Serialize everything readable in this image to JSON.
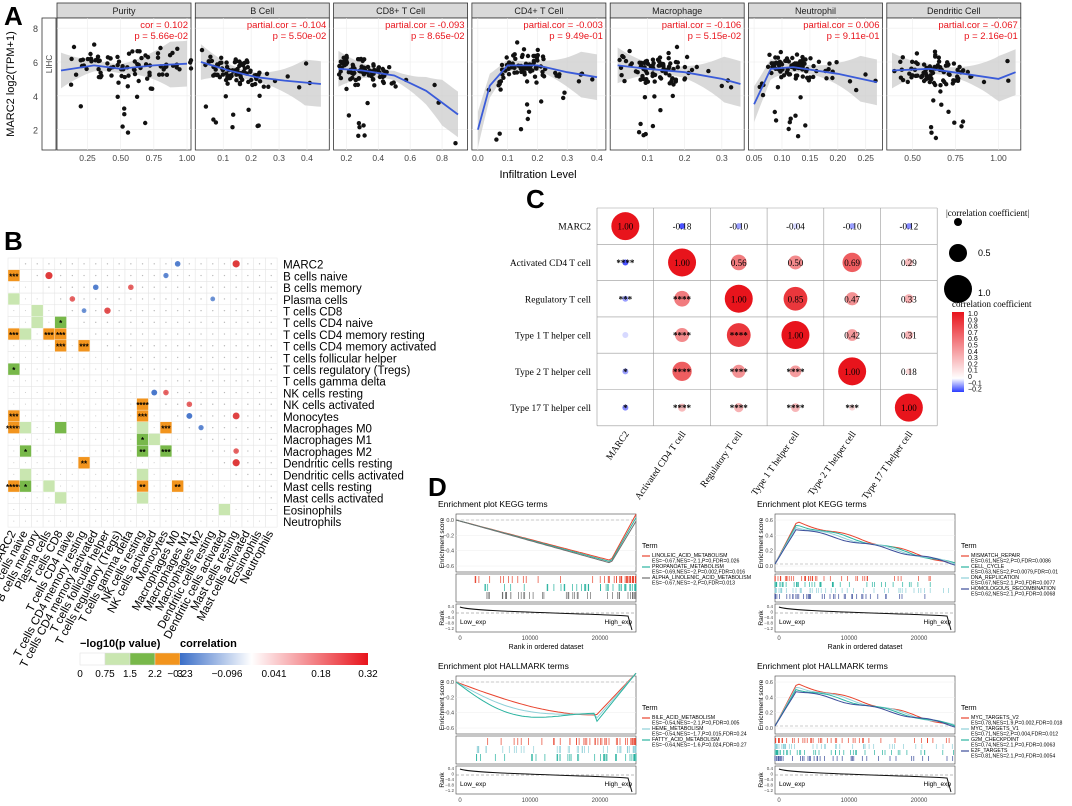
{
  "panel_labels": {
    "a": "A",
    "b": "B",
    "c": "C",
    "d": "D"
  },
  "colors": {
    "blue_line": "#3a5bd9",
    "band": "#cfcfcf",
    "red_text": "#e8141c",
    "facet_bg": "#d9d9d9"
  },
  "chart_data": [
    {
      "type": "scatter",
      "panel": "A",
      "ylabel": "MARC2 log2(TPM+1)",
      "xlabel": "Infiltration Level",
      "row_label": "LIHC",
      "yticks": [
        2,
        4,
        6,
        8
      ],
      "ylim": [
        0.8,
        8.6
      ],
      "facets": [
        {
          "title": "Purity",
          "stat1": "cor = 0.102",
          "stat2": "p = 5.66e-02",
          "xlim": [
            0.02,
            1.03
          ],
          "xticks": [
            0.25,
            0.5,
            0.75,
            1.0
          ],
          "xtick_labels": [
            "0.25",
            "0.50",
            "0.75",
            "1.00"
          ],
          "fit": [
            [
              0.05,
              5.5
            ],
            [
              0.3,
              5.8
            ],
            [
              0.5,
              5.6
            ],
            [
              0.75,
              5.8
            ],
            [
              1.0,
              5.9
            ]
          ],
          "spread": [
            0.12,
            0.98
          ]
        },
        {
          "title": "B Cell",
          "stat1": "partial.cor = -0.104",
          "stat2": "p = 5.50e-02",
          "xlim": [
            0.0,
            0.48
          ],
          "xticks": [
            0.1,
            0.2,
            0.3,
            0.4
          ],
          "xtick_labels": [
            "0.1",
            "0.2",
            "0.3",
            "0.4"
          ],
          "fit": [
            [
              0.02,
              6.0
            ],
            [
              0.12,
              5.5
            ],
            [
              0.22,
              5.1
            ],
            [
              0.32,
              4.9
            ],
            [
              0.45,
              4.7
            ]
          ],
          "spread": [
            0.02,
            0.25
          ]
        },
        {
          "title": "CD8+ T Cell",
          "stat1": "partial.cor = -0.093",
          "stat2": "p = 8.65e-02",
          "xlim": [
            0.12,
            0.96
          ],
          "xticks": [
            0.2,
            0.4,
            0.6,
            0.8
          ],
          "xtick_labels": [
            "0.2",
            "0.4",
            "0.6",
            "0.8"
          ],
          "fit": [
            [
              0.15,
              5.6
            ],
            [
              0.3,
              5.5
            ],
            [
              0.5,
              5.2
            ],
            [
              0.7,
              4.3
            ],
            [
              0.9,
              2.9
            ]
          ],
          "spread": [
            0.15,
            0.45
          ]
        },
        {
          "title": "CD4+ T Cell",
          "stat1": "partial.cor = -0.003",
          "stat2": "p = 9.49e-01",
          "xlim": [
            -0.02,
            0.43
          ],
          "xticks": [
            0.0,
            0.1,
            0.2,
            0.3,
            0.4
          ],
          "xtick_labels": [
            "0.0",
            "0.1",
            "0.2",
            "0.3",
            "0.4"
          ],
          "fit": [
            [
              0.0,
              2.0
            ],
            [
              0.04,
              4.6
            ],
            [
              0.1,
              5.8
            ],
            [
              0.2,
              5.8
            ],
            [
              0.3,
              5.4
            ],
            [
              0.4,
              5.1
            ]
          ],
          "spread": [
            0.06,
            0.25
          ]
        },
        {
          "title": "Macrophage",
          "stat1": "partial.cor = -0.106",
          "stat2": "p = 5.15e-02",
          "xlim": [
            0.0,
            0.36
          ],
          "xticks": [
            0.1,
            0.2,
            0.3
          ],
          "xtick_labels": [
            "0.1",
            "0.2",
            "0.3"
          ],
          "fit": [
            [
              0.02,
              5.8
            ],
            [
              0.1,
              5.6
            ],
            [
              0.2,
              5.4
            ],
            [
              0.3,
              5.0
            ],
            [
              0.35,
              4.7
            ]
          ],
          "spread": [
            0.03,
            0.22
          ]
        },
        {
          "title": "Neutrophil",
          "stat1": "partial.cor = 0.006",
          "stat2": "p = 9.11e-01",
          "xlim": [
            0.04,
            0.28
          ],
          "xticks": [
            0.05,
            0.1,
            0.15,
            0.2,
            0.25
          ],
          "xtick_labels": [
            "0.05",
            "0.10",
            "0.15",
            "0.20",
            "0.25"
          ],
          "fit": [
            [
              0.05,
              3.5
            ],
            [
              0.08,
              5.6
            ],
            [
              0.12,
              5.7
            ],
            [
              0.2,
              5.3
            ],
            [
              0.27,
              4.8
            ]
          ],
          "spread": [
            0.06,
            0.18
          ]
        },
        {
          "title": "Dendritic Cell",
          "stat1": "partial.cor = -0.067",
          "stat2": "p = 2.16e-01",
          "xlim": [
            0.35,
            1.13
          ],
          "xticks": [
            0.5,
            0.75,
            1.0
          ],
          "xtick_labels": [
            "0.50",
            "0.75",
            "1.00"
          ],
          "fit": [
            [
              0.38,
              5.5
            ],
            [
              0.6,
              5.6
            ],
            [
              0.8,
              5.3
            ],
            [
              1.0,
              5.0
            ],
            [
              1.1,
              5.4
            ]
          ],
          "spread": [
            0.4,
            0.85
          ]
        }
      ]
    },
    {
      "type": "heatmap",
      "panel": "B",
      "cells": [
        "MARC2",
        "B cells naive",
        "B cells memory",
        "Plasma cells",
        "T cells CD8",
        "T cells CD4 naive",
        "T cells CD4 memory resting",
        "T cells CD4 memory activated",
        "T cells follicular helper",
        "T cells regulatory (Tregs)",
        "T cells gamma delta",
        "NK cells resting",
        "NK cells activated",
        "Monocytes",
        "Macrophages M0",
        "Macrophages M1",
        "Macrophages M2",
        "Dendritic cells resting",
        "Dendritic cells activated",
        "Mast cells resting",
        "Mast cells activated",
        "Eosinophils",
        "Neutrophils"
      ],
      "lower_cells": [
        {
          "r": 1,
          "c": 0,
          "lv": 3,
          "s": "***"
        },
        {
          "r": 3,
          "c": 0,
          "lv": 1,
          "s": ""
        },
        {
          "r": 4,
          "c": 2,
          "lv": 1,
          "s": ""
        },
        {
          "r": 5,
          "c": 2,
          "lv": 1,
          "s": ""
        },
        {
          "r": 5,
          "c": 4,
          "lv": 2,
          "s": "*"
        },
        {
          "r": 6,
          "c": 0,
          "lv": 3,
          "s": "***"
        },
        {
          "r": 6,
          "c": 1,
          "lv": 1,
          "s": ""
        },
        {
          "r": 6,
          "c": 3,
          "lv": 3,
          "s": "***"
        },
        {
          "r": 6,
          "c": 4,
          "lv": 3,
          "s": "***"
        },
        {
          "r": 7,
          "c": 4,
          "lv": 3,
          "s": "***"
        },
        {
          "r": 7,
          "c": 6,
          "lv": 3,
          "s": "***"
        },
        {
          "r": 9,
          "c": 0,
          "lv": 2,
          "s": "*"
        },
        {
          "r": 12,
          "c": 11,
          "lv": 3,
          "s": "****"
        },
        {
          "r": 13,
          "c": 0,
          "lv": 3,
          "s": "***"
        },
        {
          "r": 13,
          "c": 11,
          "lv": 3,
          "s": "***"
        },
        {
          "r": 14,
          "c": 0,
          "lv": 3,
          "s": "*****"
        },
        {
          "r": 14,
          "c": 1,
          "lv": 1,
          "s": ""
        },
        {
          "r": 14,
          "c": 4,
          "lv": 2,
          "s": ""
        },
        {
          "r": 14,
          "c": 11,
          "lv": 1,
          "s": ""
        },
        {
          "r": 14,
          "c": 13,
          "lv": 3,
          "s": "***"
        },
        {
          "r": 15,
          "c": 11,
          "lv": 2,
          "s": "*"
        },
        {
          "r": 15,
          "c": 12,
          "lv": 1,
          "s": ""
        },
        {
          "r": 16,
          "c": 1,
          "lv": 2,
          "s": "*"
        },
        {
          "r": 16,
          "c": 11,
          "lv": 2,
          "s": "**"
        },
        {
          "r": 16,
          "c": 13,
          "lv": 2,
          "s": "***"
        },
        {
          "r": 17,
          "c": 6,
          "lv": 3,
          "s": "**"
        },
        {
          "r": 18,
          "c": 1,
          "lv": 1,
          "s": ""
        },
        {
          "r": 18,
          "c": 11,
          "lv": 1,
          "s": ""
        },
        {
          "r": 19,
          "c": 0,
          "lv": 3,
          "s": "*****"
        },
        {
          "r": 19,
          "c": 1,
          "lv": 2,
          "s": "*"
        },
        {
          "r": 19,
          "c": 3,
          "lv": 1,
          "s": ""
        },
        {
          "r": 19,
          "c": 11,
          "lv": 3,
          "s": "**"
        },
        {
          "r": 19,
          "c": 14,
          "lv": 3,
          "s": "**"
        },
        {
          "r": 20,
          "c": 4,
          "lv": 1,
          "s": ""
        },
        {
          "r": 20,
          "c": 11,
          "lv": 1,
          "s": ""
        },
        {
          "r": 21,
          "c": 18,
          "lv": 1,
          "s": ""
        }
      ],
      "upper_dots": [
        {
          "r": 1,
          "c": 3,
          "v": 0.3
        },
        {
          "r": 2,
          "c": 7,
          "v": -0.2
        },
        {
          "r": 3,
          "c": 5,
          "v": 0.2
        },
        {
          "r": 0,
          "c": 14,
          "v": -0.2
        },
        {
          "r": 0,
          "c": 19,
          "v": 0.3
        },
        {
          "r": 2,
          "c": 10,
          "v": 0.2
        },
        {
          "r": 1,
          "c": 13,
          "v": -0.18
        },
        {
          "r": 3,
          "c": 17,
          "v": -0.15
        },
        {
          "r": 4,
          "c": 6,
          "v": -0.15
        },
        {
          "r": 4,
          "c": 8,
          "v": 0.25
        },
        {
          "r": 11,
          "c": 12,
          "v": -0.22
        },
        {
          "r": 11,
          "c": 13,
          "v": 0.2
        },
        {
          "r": 12,
          "c": 15,
          "v": 0.2
        },
        {
          "r": 13,
          "c": 15,
          "v": -0.22
        },
        {
          "r": 13,
          "c": 19,
          "v": 0.28
        },
        {
          "r": 14,
          "c": 16,
          "v": -0.18
        },
        {
          "r": 16,
          "c": 19,
          "v": 0.2
        },
        {
          "r": 17,
          "c": 19,
          "v": 0.3
        }
      ],
      "legend_p": {
        "title": "−log10(p value)",
        "ticks": [
          "0",
          "0.75",
          "1.5",
          "2.2",
          "3"
        ]
      },
      "legend_cor": {
        "title": "correlation",
        "ticks": [
          "−0.23",
          "−0.096",
          "0.041",
          "0.18",
          "0.32"
        ]
      }
    },
    {
      "type": "correlation-matrix",
      "panel": "C",
      "rows": [
        "MARC2",
        "Activated CD4 T cell",
        "Regulatory T cell",
        "Type 1 T helper cell",
        "Type 2 T helper cell",
        "Type 17 T helper cell"
      ],
      "upper": [
        {
          "r": 0,
          "c": 1,
          "v": -0.18,
          "t": "-0.18"
        },
        {
          "r": 0,
          "c": 2,
          "v": -0.1,
          "t": "-0.10"
        },
        {
          "r": 0,
          "c": 3,
          "v": -0.04,
          "t": "-0.04"
        },
        {
          "r": 0,
          "c": 4,
          "v": -0.1,
          "t": "-0.10"
        },
        {
          "r": 0,
          "c": 5,
          "v": -0.12,
          "t": "-0.12"
        },
        {
          "r": 1,
          "c": 2,
          "v": 0.56,
          "t": "0.56"
        },
        {
          "r": 1,
          "c": 3,
          "v": 0.5,
          "t": "0.50"
        },
        {
          "r": 1,
          "c": 4,
          "v": 0.69,
          "t": "0.69"
        },
        {
          "r": 1,
          "c": 5,
          "v": 0.29,
          "t": "0.29"
        },
        {
          "r": 2,
          "c": 3,
          "v": 0.85,
          "t": "0.85"
        },
        {
          "r": 2,
          "c": 4,
          "v": 0.47,
          "t": "0.47"
        },
        {
          "r": 2,
          "c": 5,
          "v": 0.33,
          "t": "0.33"
        },
        {
          "r": 3,
          "c": 4,
          "v": 0.42,
          "t": "0.42"
        },
        {
          "r": 3,
          "c": 5,
          "v": 0.31,
          "t": "0.31"
        },
        {
          "r": 4,
          "c": 5,
          "v": 0.18,
          "t": "0.18"
        }
      ],
      "diag_label": "1.00",
      "lower": [
        {
          "r": 1,
          "c": 0,
          "v": -0.18,
          "s": "****"
        },
        {
          "r": 2,
          "c": 0,
          "v": -0.1,
          "s": "***"
        },
        {
          "r": 2,
          "c": 1,
          "v": 0.56,
          "s": "****"
        },
        {
          "r": 3,
          "c": 0,
          "v": -0.04,
          "s": ""
        },
        {
          "r": 3,
          "c": 1,
          "v": 0.5,
          "s": "****"
        },
        {
          "r": 3,
          "c": 2,
          "v": 0.85,
          "s": "****"
        },
        {
          "r": 4,
          "c": 0,
          "v": -0.1,
          "s": "*"
        },
        {
          "r": 4,
          "c": 1,
          "v": 0.69,
          "s": "****"
        },
        {
          "r": 4,
          "c": 2,
          "v": 0.47,
          "s": "****"
        },
        {
          "r": 4,
          "c": 3,
          "v": 0.42,
          "s": "****"
        },
        {
          "r": 5,
          "c": 0,
          "v": -0.12,
          "s": "*"
        },
        {
          "r": 5,
          "c": 1,
          "v": 0.29,
          "s": "****"
        },
        {
          "r": 5,
          "c": 2,
          "v": 0.33,
          "s": "****"
        },
        {
          "r": 5,
          "c": 3,
          "v": 0.31,
          "s": "****"
        },
        {
          "r": 5,
          "c": 4,
          "v": 0.18,
          "s": "***"
        }
      ],
      "size_legend": {
        "title": "|correlation coefficient|",
        "ticks": [
          "0.5",
          "1.0"
        ]
      },
      "color_legend": {
        "title": "correlation coefficient",
        "ticks": [
          "1.0",
          "0.9",
          "0.8",
          "0.7",
          "0.6",
          "0.5",
          "0.4",
          "0.3",
          "0.2",
          "0.1",
          "0",
          "−0.1",
          "−0.2"
        ]
      }
    },
    {
      "type": "line",
      "panel": "D",
      "plots": [
        {
          "title": "Enrichment plot KEGG terms",
          "mode": "down",
          "legend": [
            {
              "name": "LINOLEIC_ACID_METABOLISM",
              "stat": "ES=−0.67,NES=−2.1,P=0,FDR=0.026",
              "color": "#e8442e"
            },
            {
              "name": "PROPANOATE_METABOLISM",
              "stat": "ES=−0.69,NES=−2,P=0.002,FDR=0.016",
              "color": "#2ab3a0"
            },
            {
              "name": "ALPHA_LINOLENIC_ACID_METABOLISM",
              "stat": "ES=−0.67,NES=−2,P=0,FDR=0.013",
              "color": "#6f6f6f"
            }
          ]
        },
        {
          "title": "Enrichment plot KEGG terms",
          "mode": "up",
          "legend": [
            {
              "name": "MISMATCH_REPAIR",
              "stat": "ES=0.61,NES=2,P=0,FDR=0.0086",
              "color": "#e8442e"
            },
            {
              "name": "CELL_CYCLE",
              "stat": "ES=0.63,NES=2,P=0.0079,FDR=0.01",
              "color": "#2ab3a0"
            },
            {
              "name": "DNA_REPLICATION",
              "stat": "ES=0.67,NES=2.1,P=0,FDR=0.0077",
              "color": "#8fd0d8"
            },
            {
              "name": "HOMOLOGOUS_RECOMBINATION",
              "stat": "ES=0.62,NES=2.1,P=0,FDR=0.0068",
              "color": "#3b4d9a"
            }
          ]
        },
        {
          "title": "Enrichment plot HALLMARK terms",
          "mode": "down2",
          "legend": [
            {
              "name": "BILE_ACID_METABOLISM",
              "stat": "ES=−0.54,NES=−2.1,P=0,FDR=0.005",
              "color": "#e8442e"
            },
            {
              "name": "HEME_METABOLISM",
              "stat": "ES=−0.54,NES=−1.7,P=0.015,FDR=0.24",
              "color": "#8fd0d8"
            },
            {
              "name": "FATTY_ACID_METABOLISM",
              "stat": "ES=−0.64,NES=−1.6,P=0.024,FDR=0.27",
              "color": "#2ab3a0"
            }
          ]
        },
        {
          "title": "Enrichment plot HALLMARK terms",
          "mode": "up2",
          "legend": [
            {
              "name": "MYC_TARGETS_V2",
              "stat": "ES=0.78,NES=1.9,P=0.002,FDR=0.018",
              "color": "#e8442e"
            },
            {
              "name": "MYC_TARGETS_V1",
              "stat": "ES=0.71,NES=2,P=0.004,FDR=0.012",
              "color": "#8fd0d8"
            },
            {
              "name": "G2M_CHECKPOINT",
              "stat": "ES=0.74,NES=2.1,P=0,FDR=0.0063",
              "color": "#2ab3a0"
            },
            {
              "name": "E2F_TARGETS",
              "stat": "ES=0.81,NES=2.1,P=0,FDR=0.0054",
              "color": "#3b4d9a"
            }
          ]
        }
      ],
      "ylabel_es": "Enrichment score",
      "ylabel_rank": "Rank",
      "xlabel": "Rank in ordered dataset",
      "xticks": [
        "0",
        "10000",
        "20000"
      ],
      "legend_title": "Term",
      "low_label": "Low_exp",
      "high_label": "High_exp",
      "es_ticks_down": [
        "0.0",
        "−0.2",
        "−0.4",
        "−0.6"
      ],
      "es_ticks_up": [
        "0.6",
        "0.4",
        "0.2",
        "0.0"
      ],
      "rank_ticks": [
        "0.4",
        "0",
        "−0.4",
        "−0.8",
        "−1.2"
      ]
    }
  ]
}
